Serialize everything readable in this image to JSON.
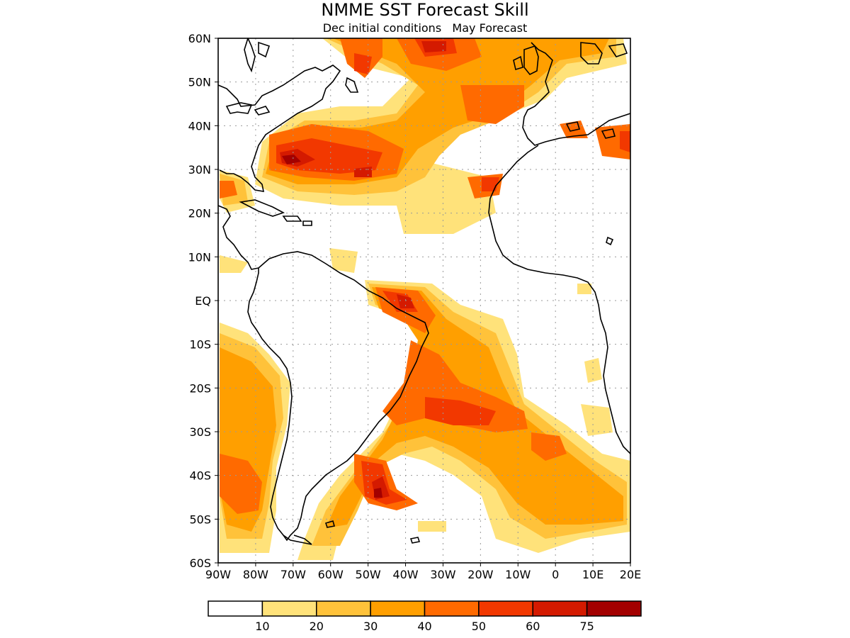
{
  "title": "NMME SST Forecast Skill",
  "subtitle": "Dec initial conditions   May Forecast",
  "lat_labels": [
    "60N",
    "50N",
    "40N",
    "30N",
    "20N",
    "10N",
    "EQ",
    "10S",
    "20S",
    "30S",
    "40S",
    "50S",
    "60S"
  ],
  "lon_labels": [
    "90W",
    "80W",
    "70W",
    "60W",
    "50W",
    "40W",
    "30W",
    "20W",
    "10W",
    "0",
    "10E",
    "20E"
  ],
  "colorbar": {
    "colors": [
      "#ffffff",
      "#ffe27a",
      "#ffc23a",
      "#ff9f00",
      "#ff6a00",
      "#f23800",
      "#d41a00",
      "#a30000"
    ],
    "labels": [
      "10",
      "20",
      "30",
      "40",
      "50",
      "60",
      "75"
    ]
  }
}
